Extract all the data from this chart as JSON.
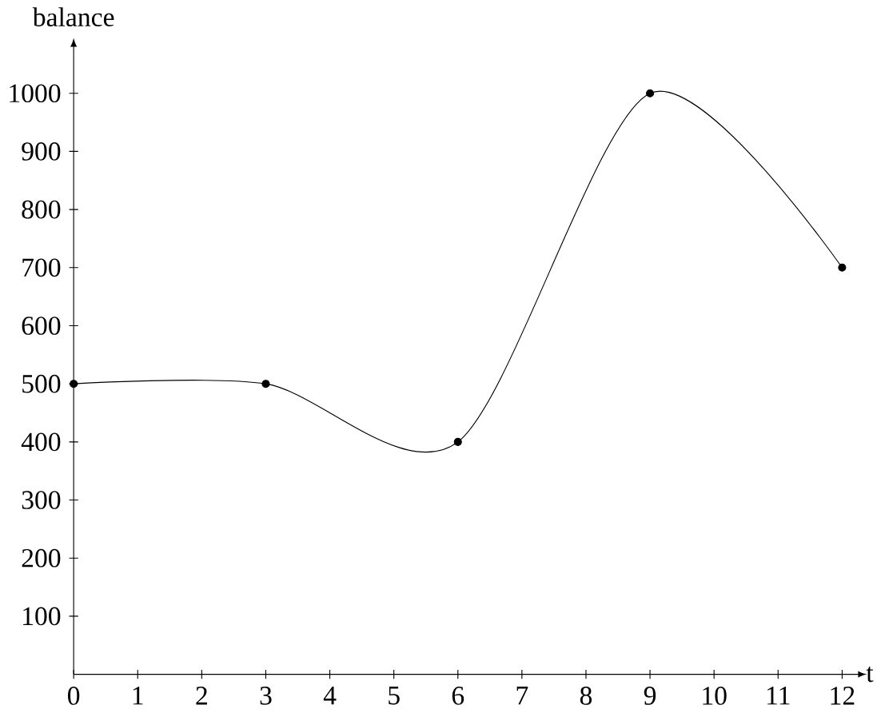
{
  "chart_data": {
    "type": "line",
    "xlabel": "t",
    "ylabel": "balance",
    "x": [
      0,
      3,
      6,
      9,
      12
    ],
    "series": [
      {
        "color": "#000000",
        "values": [
          500,
          500,
          400,
          1000,
          700
        ]
      }
    ],
    "xlim": [
      0,
      12.25
    ],
    "ylim": [
      0,
      1080
    ],
    "xticks": [
      0,
      1,
      2,
      3,
      4,
      5,
      6,
      7,
      8,
      9,
      10,
      11,
      12
    ],
    "yticks": [
      100,
      200,
      300,
      400,
      500,
      600,
      700,
      800,
      900,
      1000
    ],
    "marker": "circle",
    "line_style": "solid",
    "grid": false
  }
}
